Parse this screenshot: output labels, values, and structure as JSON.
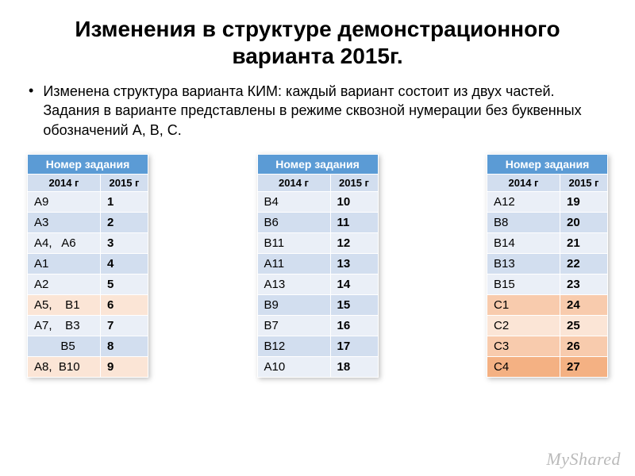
{
  "title": "Изменения в структуре демонстрационного варианта 2015г.",
  "bullet_text": "Изменена структура варианта КИМ: каждый вариант состоит из двух частей. Задания в варианте представлены в режиме сквозной нумерации без буквенных обозначений А, В, С.",
  "table_header": "Номер задания",
  "sub_left": "2014 г",
  "sub_right": "2015 г",
  "colors": {
    "header_bg": "#5b9bd5",
    "header_fg": "#ffffff",
    "subhead_bg": "#d2deef",
    "band_odd": "#eaeff7",
    "band_even": "#d2deef",
    "accent_light": "#fbe5d6",
    "accent_mid": "#f8cbad",
    "accent_dark": "#f4b183",
    "text": "#000000"
  },
  "tables": [
    {
      "rows": [
        {
          "left": "A9",
          "right": "1",
          "bg": "#eaeff7"
        },
        {
          "left": "A3",
          "right": "2",
          "bg": "#d2deef"
        },
        {
          "left": "A4,   A6",
          "right": "3",
          "bg": "#eaeff7"
        },
        {
          "left": "A1",
          "right": "4",
          "bg": "#d2deef"
        },
        {
          "left": "A2",
          "right": "5",
          "bg": "#eaeff7"
        },
        {
          "left": "A5,    B1",
          "right": "6",
          "bg": "#fbe5d6"
        },
        {
          "left": "A7,    B3",
          "right": "7",
          "bg": "#eaeff7"
        },
        {
          "left": "        B5",
          "right": "8",
          "bg": "#d2deef"
        },
        {
          "left": "A8,  B10",
          "right": "9",
          "bg": "#fbe5d6"
        }
      ]
    },
    {
      "rows": [
        {
          "left": "B4",
          "right": "10",
          "bg": "#eaeff7"
        },
        {
          "left": "B6",
          "right": "11",
          "bg": "#d2deef"
        },
        {
          "left": "B11",
          "right": "12",
          "bg": "#eaeff7"
        },
        {
          "left": "A11",
          "right": "13",
          "bg": "#d2deef"
        },
        {
          "left": "A13",
          "right": "14",
          "bg": "#eaeff7"
        },
        {
          "left": "B9",
          "right": "15",
          "bg": "#d2deef"
        },
        {
          "left": "B7",
          "right": "16",
          "bg": "#eaeff7"
        },
        {
          "left": "B12",
          "right": "17",
          "bg": "#d2deef"
        },
        {
          "left": "A10",
          "right": "18",
          "bg": "#eaeff7"
        }
      ]
    },
    {
      "rows": [
        {
          "left": "A12",
          "right": "19",
          "bg": "#eaeff7"
        },
        {
          "left": "B8",
          "right": "20",
          "bg": "#d2deef"
        },
        {
          "left": "B14",
          "right": "21",
          "bg": "#eaeff7"
        },
        {
          "left": "B13",
          "right": "22",
          "bg": "#d2deef"
        },
        {
          "left": "B15",
          "right": "23",
          "bg": "#eaeff7"
        },
        {
          "left": "C1",
          "right": "24",
          "bg": "#f8cbad"
        },
        {
          "left": "C2",
          "right": "25",
          "bg": "#fbe5d6"
        },
        {
          "left": "C3",
          "right": "26",
          "bg": "#f8cbad"
        },
        {
          "left": "C4",
          "right": "27",
          "bg": "#f4b183"
        }
      ]
    }
  ],
  "watermark": "MyShared"
}
